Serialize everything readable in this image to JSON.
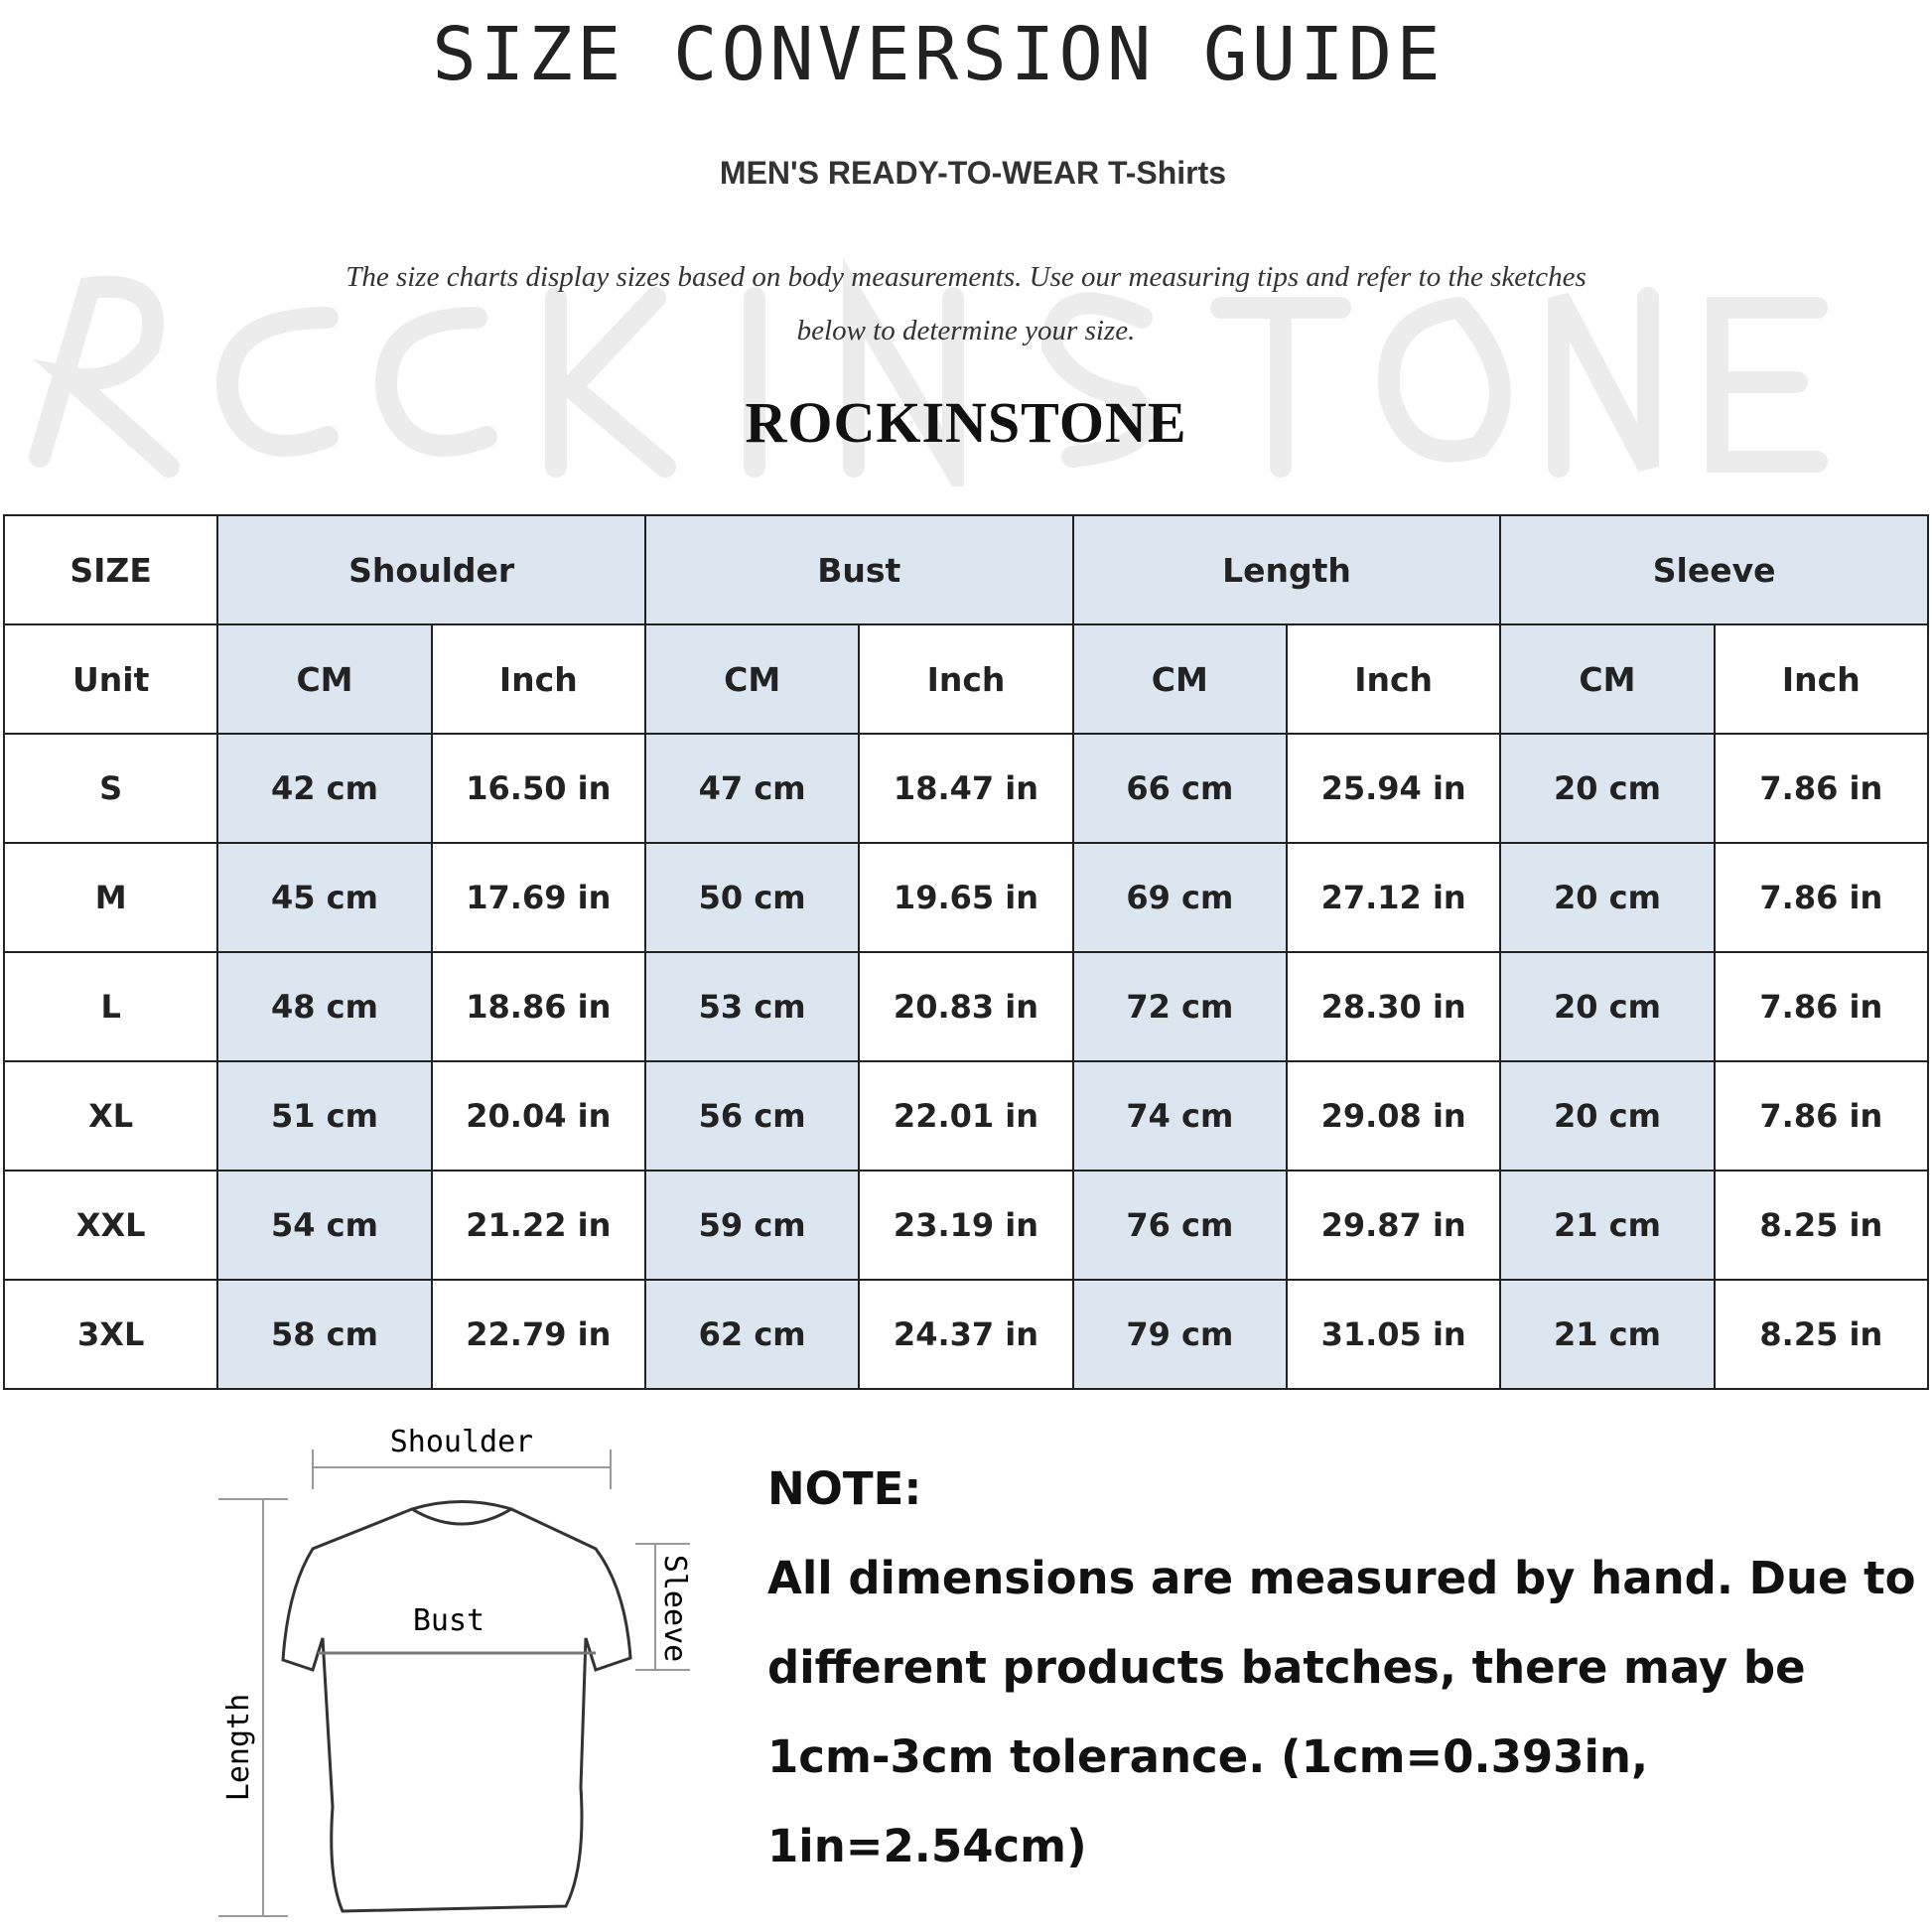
{
  "header": {
    "title": "SIZE CONVERSION GUIDE",
    "subtitle": "MEN'S READY-TO-WEAR T-Shirts",
    "description_line1": "The size charts display sizes based on body measurements. Use our measuring tips and refer to the sketches",
    "description_line2": "below to determine your size.",
    "watermark": "ROCKINSTONE",
    "brand": "ROCKINSTONE"
  },
  "table": {
    "size_label": "SIZE",
    "groups": [
      "Shoulder",
      "Bust",
      "Length",
      "Sleeve"
    ],
    "unit_label": "Unit",
    "units": [
      "CM",
      "Inch",
      "CM",
      "Inch",
      "CM",
      "Inch",
      "CM",
      "Inch"
    ],
    "rows": [
      {
        "size": "S",
        "cells": [
          "42 cm",
          "16.50 in",
          "47 cm",
          "18.47  in",
          "66 cm",
          "25.94  in",
          "20 cm",
          "7.86  in"
        ]
      },
      {
        "size": "M",
        "cells": [
          "45 cm",
          "17.69  in",
          "50 cm",
          "19.65  in",
          "69 cm",
          "27.12  in",
          "20 cm",
          "7.86  in"
        ]
      },
      {
        "size": "L",
        "cells": [
          "48 cm",
          "18.86  in",
          "53 cm",
          "20.83  in",
          "72 cm",
          "28.30  in",
          "20 cm",
          "7.86  in"
        ]
      },
      {
        "size": "XL",
        "cells": [
          "51 cm",
          "20.04  in",
          "56 cm",
          "22.01  in",
          "74 cm",
          "29.08  in",
          "20 cm",
          "7.86  in"
        ]
      },
      {
        "size": "XXL",
        "cells": [
          "54 cm",
          "21.22  in",
          "59 cm",
          "23.19  in",
          "76 cm",
          "29.87  in",
          "21 cm",
          "8.25  in"
        ]
      },
      {
        "size": "3XL",
        "cells": [
          "58 cm",
          "22.79  in",
          "62 cm",
          "24.37  in",
          "79 cm",
          "31.05  in",
          "21 cm",
          "8.25  in"
        ]
      }
    ]
  },
  "diagram": {
    "shoulder": "Shoulder",
    "bust": "Bust",
    "length": "Length",
    "sleeve": "Sleeve"
  },
  "note": {
    "heading": "NOTE:",
    "line1": "All dimensions are measured by hand. Due to",
    "line2": "different products batches, there may be",
    "line3": "1cm-3cm tolerance. (1cm=0.393in, 1in=2.54cm)"
  }
}
